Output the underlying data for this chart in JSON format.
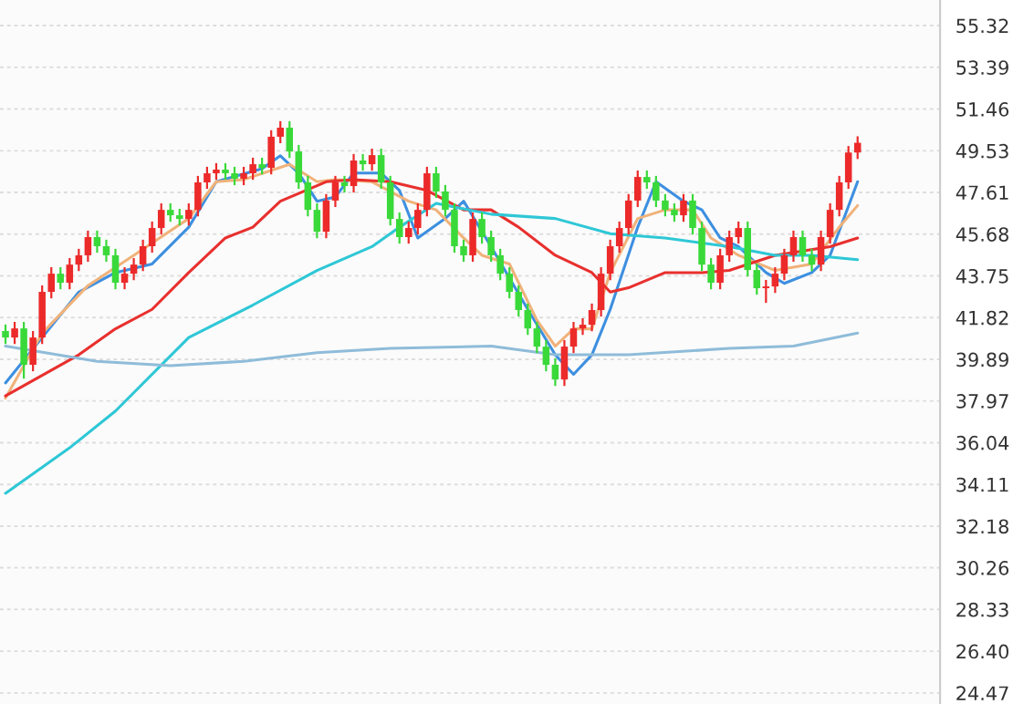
{
  "chart_data": {
    "type": "candlestick",
    "categories": [
      null,
      null,
      null,
      null,
      null,
      null,
      null,
      null,
      null,
      null,
      null,
      null,
      null,
      null,
      null,
      null,
      null,
      null,
      null,
      null,
      null,
      null,
      null,
      null,
      null,
      null,
      null,
      null,
      null,
      null,
      null,
      null,
      null,
      null,
      null,
      null,
      null,
      null,
      null,
      null,
      null,
      null,
      null,
      null,
      null,
      null,
      null,
      null,
      null,
      null,
      null,
      null,
      null,
      null,
      null,
      null,
      null,
      null,
      null,
      null,
      null,
      null,
      null,
      null,
      null,
      null,
      null,
      null,
      null,
      null,
      null,
      null,
      null,
      null,
      null,
      null,
      null,
      null,
      null,
      null,
      null,
      null,
      null,
      null,
      null,
      null,
      null,
      null,
      null,
      null,
      null,
      null,
      null,
      null
    ],
    "colors": [
      "#3ad93a",
      "#ec2a2a",
      "#3ad93a",
      "#ec2a2a",
      "#ec2a2a",
      "#ec2a2a",
      "#3ad93a",
      "#ec2a2a",
      "#ec2a2a",
      "#ec2a2a",
      "#3ad93a",
      "#3ad93a",
      "#3ad93a",
      "#ec2a2a",
      "#ec2a2a",
      "#ec2a2a",
      "#ec2a2a",
      "#ec2a2a",
      "#3ad93a",
      "#3ad93a",
      "#ec2a2a",
      "#ec2a2a",
      "#ec2a2a",
      "#ec2a2a",
      "#3ad93a",
      "#3ad93a",
      "#ec2a2a",
      "#ec2a2a",
      "#3ad93a",
      "#ec2a2a",
      "#ec2a2a",
      "#3ad93a",
      "#3ad93a",
      "#3ad93a",
      "#3ad93a",
      "#ec2a2a",
      "#ec2a2a",
      "#3ad93a",
      "#ec2a2a",
      "#3ad93a",
      "#ec2a2a",
      "#3ad93a",
      "#3ad93a",
      "#3ad93a",
      "#ec2a2a",
      "#ec2a2a",
      "#ec2a2a",
      "#3ad93a",
      "#3ad93a",
      "#3ad93a",
      "#3ad93a",
      "#ec2a2a",
      "#3ad93a",
      "#3ad93a",
      "#3ad93a",
      "#3ad93a",
      "#3ad93a",
      "#3ad93a",
      "#3ad93a",
      "#3ad93a",
      "#3ad93a",
      "#ec2a2a",
      "#ec2a2a",
      "#ec2a2a",
      "#ec2a2a",
      "#ec2a2a",
      "#ec2a2a",
      "#ec2a2a",
      "#ec2a2a",
      "#ec2a2a",
      "#3ad93a",
      "#3ad93a",
      "#3ad93a",
      "#3ad93a",
      "#ec2a2a",
      "#3ad93a",
      "#3ad93a",
      "#3ad93a",
      "#ec2a2a",
      "#ec2a2a",
      "#ec2a2a",
      "#3ad93a",
      "#3ad93a",
      "#ec2a2a",
      "#ec2a2a",
      "#ec2a2a",
      "#ec2a2a",
      "#3ad93a",
      "#3ad93a",
      "#ec2a2a",
      "#ec2a2a",
      "#ec2a2a",
      "#ec2a2a",
      "#ec2a2a"
    ],
    "ohlc": [
      [
        41.2,
        41.5,
        40.6,
        40.9
      ],
      [
        40.9,
        41.62,
        40.6,
        41.32
      ],
      [
        41.32,
        41.62,
        39.0,
        39.64
      ],
      [
        39.64,
        41.2,
        39.34,
        40.9
      ],
      [
        40.9,
        43.31,
        40.6,
        43.01
      ],
      [
        43.01,
        44.15,
        42.71,
        43.85
      ],
      [
        43.85,
        44.15,
        43.13,
        43.43
      ],
      [
        43.43,
        44.57,
        43.13,
        44.27
      ],
      [
        44.27,
        45.0,
        43.97,
        44.7
      ],
      [
        44.7,
        45.84,
        44.4,
        45.54
      ],
      [
        45.54,
        45.84,
        44.82,
        45.12
      ],
      [
        45.12,
        45.42,
        44.4,
        44.7
      ],
      [
        44.7,
        45.0,
        43.13,
        43.43
      ],
      [
        43.43,
        44.15,
        43.13,
        43.85
      ],
      [
        43.85,
        44.57,
        43.55,
        44.27
      ],
      [
        44.27,
        45.42,
        43.97,
        45.12
      ],
      [
        45.12,
        46.26,
        44.82,
        45.96
      ],
      [
        45.96,
        47.1,
        45.66,
        46.8
      ],
      [
        46.8,
        47.1,
        46.25,
        46.55
      ],
      [
        46.55,
        46.85,
        46.08,
        46.38
      ],
      [
        46.38,
        47.1,
        46.08,
        46.8
      ],
      [
        46.8,
        48.37,
        46.5,
        48.07
      ],
      [
        48.07,
        48.79,
        47.77,
        48.49
      ],
      [
        48.49,
        48.96,
        48.19,
        48.66
      ],
      [
        48.66,
        48.96,
        48.19,
        48.49
      ],
      [
        48.49,
        48.79,
        47.94,
        48.24
      ],
      [
        48.24,
        48.79,
        47.94,
        48.49
      ],
      [
        48.49,
        49.21,
        48.19,
        48.91
      ],
      [
        48.91,
        49.21,
        48.44,
        48.74
      ],
      [
        48.74,
        50.48,
        48.44,
        50.18
      ],
      [
        50.18,
        50.9,
        49.88,
        50.6
      ],
      [
        50.6,
        50.9,
        49.2,
        49.5
      ],
      [
        49.5,
        49.8,
        47.77,
        48.07
      ],
      [
        48.07,
        48.37,
        46.5,
        46.8
      ],
      [
        46.8,
        47.1,
        45.49,
        45.79
      ],
      [
        45.79,
        47.53,
        45.49,
        47.23
      ],
      [
        47.23,
        48.37,
        46.93,
        48.07
      ],
      [
        48.07,
        48.37,
        47.6,
        47.9
      ],
      [
        47.9,
        49.38,
        47.6,
        49.08
      ],
      [
        49.08,
        49.38,
        48.61,
        48.91
      ],
      [
        48.91,
        49.63,
        48.61,
        49.33
      ],
      [
        49.33,
        49.63,
        47.77,
        48.07
      ],
      [
        48.07,
        48.37,
        46.08,
        46.38
      ],
      [
        46.38,
        46.68,
        45.24,
        45.54
      ],
      [
        45.54,
        46.26,
        45.24,
        45.96
      ],
      [
        45.96,
        47.1,
        45.66,
        46.8
      ],
      [
        46.8,
        48.79,
        46.5,
        48.49
      ],
      [
        48.49,
        48.79,
        47.35,
        47.65
      ],
      [
        47.65,
        47.95,
        46.5,
        46.8
      ],
      [
        46.8,
        47.1,
        44.82,
        45.12
      ],
      [
        45.12,
        45.42,
        44.4,
        44.7
      ],
      [
        44.7,
        46.68,
        44.4,
        46.38
      ],
      [
        46.38,
        46.68,
        45.24,
        45.54
      ],
      [
        45.54,
        45.84,
        44.4,
        44.7
      ],
      [
        44.7,
        45.0,
        43.55,
        43.85
      ],
      [
        43.85,
        44.15,
        42.71,
        43.01
      ],
      [
        43.01,
        43.31,
        41.87,
        42.17
      ],
      [
        42.17,
        42.47,
        41.02,
        41.32
      ],
      [
        41.32,
        41.62,
        40.18,
        40.48
      ],
      [
        40.48,
        40.78,
        39.34,
        39.64
      ],
      [
        39.64,
        39.94,
        38.66,
        38.96
      ],
      [
        38.96,
        40.78,
        38.66,
        40.48
      ],
      [
        40.48,
        41.62,
        40.18,
        41.32
      ],
      [
        41.32,
        41.79,
        41.02,
        41.49
      ],
      [
        41.49,
        42.47,
        41.19,
        42.17
      ],
      [
        42.17,
        44.15,
        41.87,
        43.85
      ],
      [
        43.85,
        45.42,
        43.55,
        45.12
      ],
      [
        45.12,
        46.26,
        44.82,
        45.96
      ],
      [
        45.96,
        47.53,
        45.66,
        47.23
      ],
      [
        47.23,
        48.62,
        46.93,
        48.32
      ],
      [
        48.32,
        48.62,
        47.77,
        48.07
      ],
      [
        48.07,
        48.37,
        46.93,
        47.23
      ],
      [
        47.23,
        47.53,
        46.5,
        46.8
      ],
      [
        46.8,
        47.1,
        46.25,
        46.55
      ],
      [
        46.55,
        47.53,
        46.25,
        47.23
      ],
      [
        47.23,
        47.53,
        45.66,
        45.96
      ],
      [
        45.96,
        46.26,
        43.97,
        44.27
      ],
      [
        44.27,
        44.57,
        43.13,
        43.43
      ],
      [
        43.43,
        45.0,
        43.13,
        44.7
      ],
      [
        44.7,
        45.84,
        44.4,
        45.54
      ],
      [
        45.54,
        46.26,
        45.24,
        45.96
      ],
      [
        45.96,
        46.26,
        43.72,
        44.02
      ],
      [
        44.02,
        44.32,
        42.88,
        43.18
      ],
      [
        43.18,
        43.56,
        42.5,
        43.26
      ],
      [
        43.26,
        44.15,
        42.96,
        43.85
      ],
      [
        43.85,
        45.0,
        43.55,
        44.7
      ],
      [
        44.7,
        45.84,
        44.4,
        45.54
      ],
      [
        45.54,
        45.84,
        44.4,
        44.7
      ],
      [
        44.7,
        45.0,
        43.97,
        44.27
      ],
      [
        44.27,
        45.84,
        43.97,
        45.54
      ],
      [
        45.54,
        47.1,
        45.24,
        46.8
      ],
      [
        46.8,
        48.37,
        46.5,
        48.07
      ],
      [
        48.07,
        49.75,
        47.77,
        49.45
      ],
      [
        49.45,
        50.2,
        49.15,
        49.9
      ]
    ],
    "series": [
      {
        "type": "line",
        "color": "#3d8fe0",
        "values": [
          38.8,
          null,
          null,
          null,
          40.9,
          null,
          null,
          null,
          43.0,
          null,
          null,
          null,
          43.9,
          null,
          null,
          null,
          44.3,
          null,
          null,
          null,
          46.0,
          null,
          null,
          48.1,
          null,
          null,
          null,
          null,
          48.7,
          null,
          49.3,
          null,
          48.5,
          null,
          47.2,
          null,
          47.4,
          null,
          48.5,
          null,
          null,
          48.5,
          null,
          47.7,
          null,
          45.5,
          null,
          null,
          46.4,
          null,
          47.2,
          null,
          null,
          45.1,
          null,
          null,
          null,
          42.2,
          null,
          null,
          40.1,
          null,
          39.2,
          null,
          40.1,
          null,
          42.2,
          null,
          null,
          46.0,
          null,
          48.1,
          null,
          null,
          47.2,
          null,
          46.8,
          null,
          45.5,
          null,
          45.1,
          null,
          null,
          43.9,
          null,
          43.4,
          null,
          null,
          43.9,
          null,
          44.7,
          null,
          null,
          48.1
        ]
      },
      {
        "type": "line",
        "color": "#f0b27a",
        "values": [
          38.1,
          null,
          null,
          null,
          41.1,
          null,
          null,
          null,
          null,
          43.3,
          null,
          null,
          null,
          null,
          44.7,
          null,
          null,
          null,
          null,
          null,
          46.4,
          null,
          null,
          48.1,
          null,
          null,
          48.2,
          null,
          null,
          null,
          null,
          48.9,
          null,
          null,
          48.1,
          null,
          48.2,
          null,
          null,
          null,
          48.1,
          null,
          null,
          null,
          47.2,
          null,
          null,
          46.8,
          null,
          null,
          45.5,
          null,
          44.7,
          null,
          null,
          44.3,
          null,
          null,
          41.7,
          null,
          40.5,
          null,
          41.3,
          null,
          41.3,
          null,
          43.9,
          null,
          null,
          46.4,
          null,
          null,
          46.8,
          null,
          null,
          46.8,
          null,
          45.5,
          null,
          null,
          44.7,
          null,
          null,
          null,
          44.0,
          null,
          null,
          null,
          44.3,
          null,
          null,
          46.0,
          null,
          47.0
        ]
      },
      {
        "type": "line",
        "color": "#e8302e",
        "values": [
          38.2,
          null,
          null,
          null,
          null,
          null,
          null,
          null,
          40.1,
          null,
          null,
          null,
          41.3,
          null,
          null,
          null,
          42.2,
          null,
          null,
          null,
          43.9,
          null,
          null,
          null,
          45.5,
          null,
          null,
          46.0,
          null,
          null,
          47.2,
          null,
          null,
          null,
          null,
          48.1,
          null,
          null,
          48.2,
          null,
          null,
          null,
          48.1,
          null,
          null,
          null,
          47.7,
          null,
          null,
          null,
          46.8,
          null,
          null,
          46.8,
          null,
          null,
          46.0,
          null,
          null,
          null,
          44.7,
          null,
          null,
          null,
          43.9,
          null,
          43.0,
          null,
          43.2,
          null,
          null,
          null,
          43.9,
          null,
          null,
          null,
          43.9,
          null,
          null,
          44.0,
          null,
          null,
          null,
          null,
          44.7,
          null,
          null,
          null,
          null,
          null,
          45.1,
          null,
          null,
          45.5
        ]
      },
      {
        "type": "line",
        "color": "#2ec7d6",
        "values": [
          33.7,
          null,
          null,
          null,
          null,
          null,
          null,
          35.8,
          null,
          null,
          null,
          null,
          37.5,
          null,
          null,
          null,
          null,
          null,
          null,
          null,
          40.9,
          null,
          null,
          null,
          null,
          null,
          null,
          42.4,
          null,
          null,
          null,
          null,
          null,
          null,
          44.0,
          null,
          null,
          null,
          null,
          null,
          45.1,
          null,
          null,
          46.0,
          null,
          null,
          null,
          47.1,
          null,
          null,
          null,
          null,
          null,
          46.6,
          null,
          null,
          null,
          null,
          null,
          null,
          46.4,
          null,
          null,
          null,
          null,
          null,
          45.7,
          null,
          null,
          null,
          null,
          null,
          45.5,
          null,
          null,
          null,
          null,
          null,
          null,
          45.1,
          null,
          null,
          null,
          null,
          44.7,
          null,
          null,
          null,
          44.7,
          null,
          null,
          null,
          null,
          44.5
        ]
      },
      {
        "type": "line",
        "color": "#8fbcd9",
        "values": [
          40.5,
          null,
          null,
          null,
          null,
          null,
          null,
          null,
          null,
          null,
          39.8,
          null,
          null,
          null,
          null,
          null,
          null,
          null,
          39.6,
          null,
          null,
          null,
          null,
          null,
          null,
          null,
          39.8,
          null,
          null,
          null,
          null,
          null,
          null,
          null,
          40.2,
          null,
          null,
          null,
          null,
          null,
          null,
          null,
          40.4,
          null,
          null,
          null,
          null,
          null,
          null,
          null,
          null,
          null,
          null,
          40.5,
          null,
          null,
          null,
          null,
          null,
          null,
          40.1,
          null,
          null,
          null,
          null,
          null,
          null,
          null,
          40.1,
          null,
          null,
          null,
          null,
          null,
          null,
          null,
          null,
          null,
          null,
          40.4,
          null,
          null,
          null,
          null,
          null,
          null,
          40.5,
          null,
          null,
          null,
          null,
          null,
          null,
          41.1
        ]
      }
    ],
    "ylim": [
      23.96,
      56.5
    ],
    "yticks": [
      24.47,
      {
        "value": 26.4,
        "label": "26.40"
      },
      28.33,
      30.26,
      32.18,
      34.11,
      36.04,
      37.97,
      39.89,
      41.82,
      43.75,
      45.68,
      47.61,
      49.53,
      51.46,
      53.39,
      55.32
    ],
    "grid": "y",
    "tick_labels": "y"
  }
}
